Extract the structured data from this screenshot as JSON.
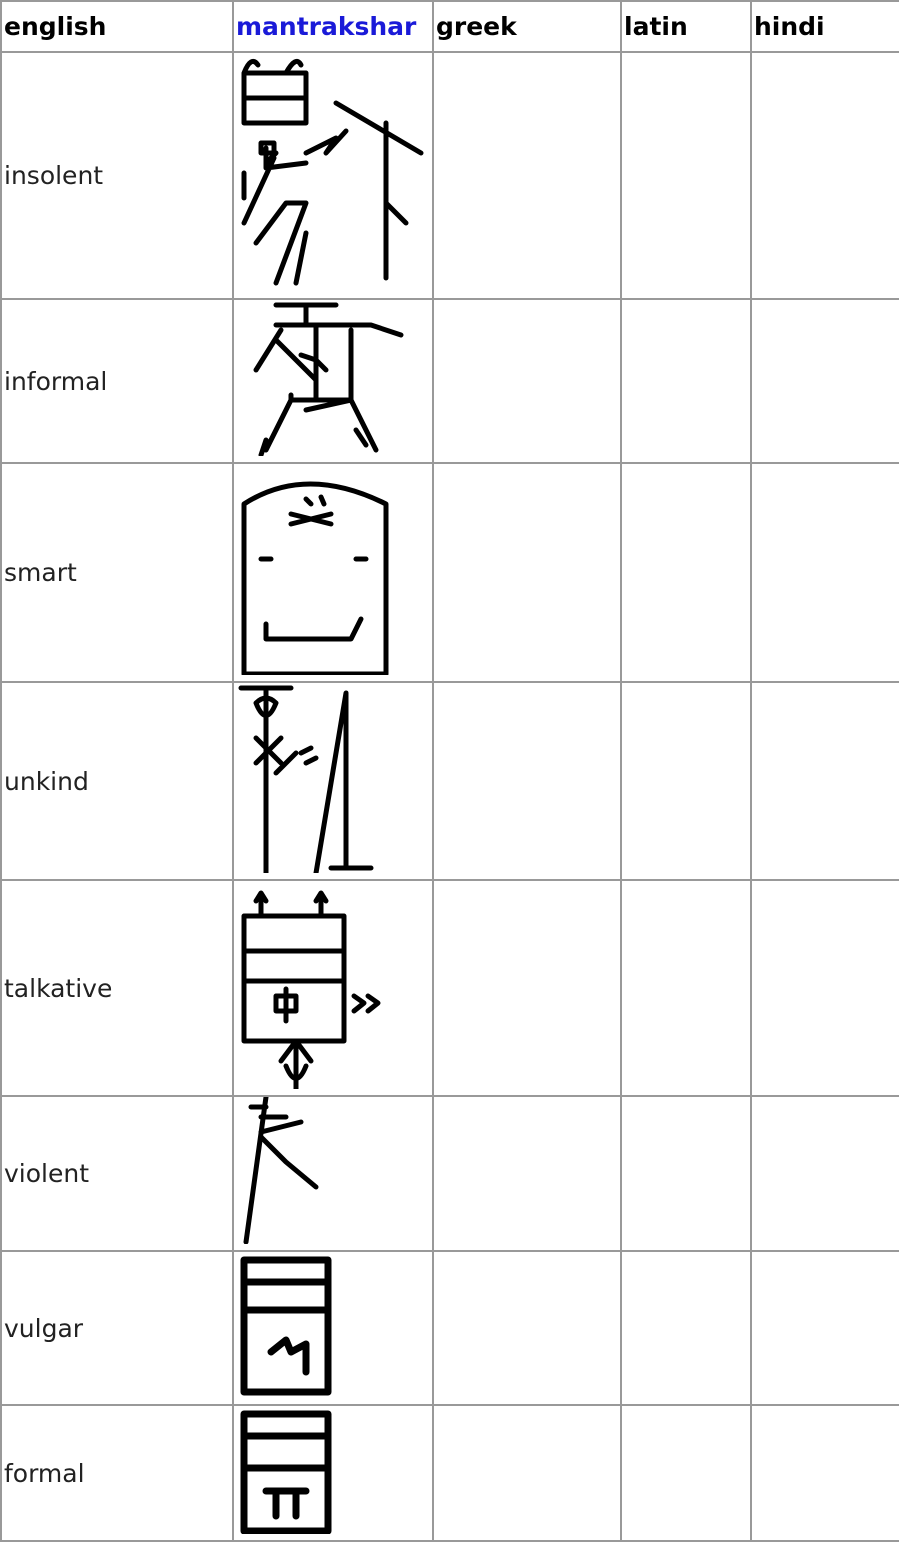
{
  "table": {
    "headers": [
      "english",
      "mantrakshar",
      "greek",
      "latin",
      "hindi"
    ],
    "rows": [
      "insolent",
      "informal",
      "smart",
      "unkind",
      "talkative",
      "violent",
      "vulgar",
      "formal"
    ]
  }
}
